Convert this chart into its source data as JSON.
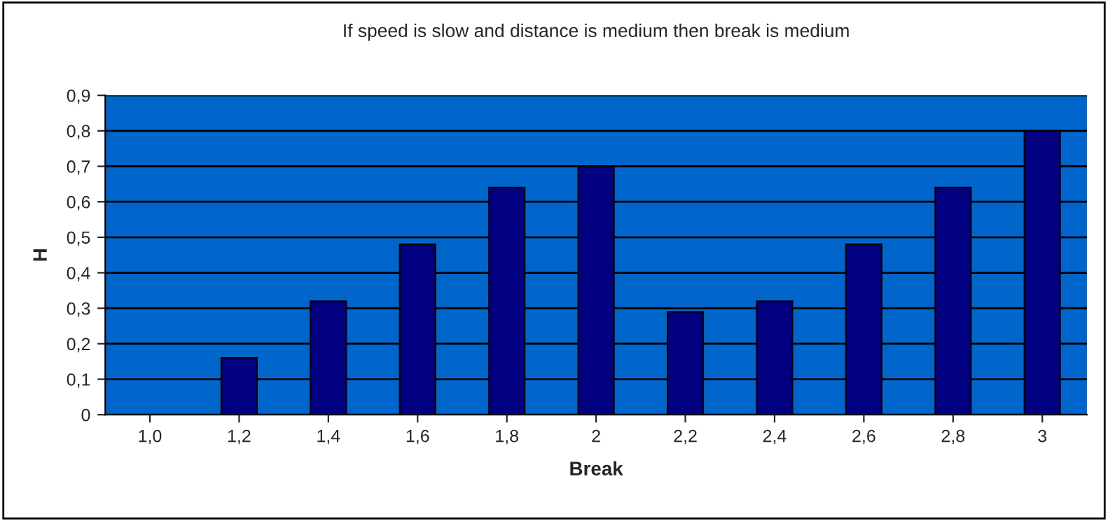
{
  "chart_data": {
    "type": "bar",
    "title": "If speed is slow and distance is medium then break is medium",
    "xlabel": "Break",
    "ylabel": "H",
    "categories": [
      "1,0",
      "1,2",
      "1,4",
      "1,6",
      "1,8",
      "2",
      "2,2",
      "2,4",
      "2,6",
      "2,8",
      "3"
    ],
    "values": [
      0,
      0.16,
      0.32,
      0.48,
      0.64,
      0.7,
      0.29,
      0.32,
      0.48,
      0.64,
      0.8
    ],
    "color": "#000080",
    "ylim": [
      0,
      0.9
    ],
    "yticks": [
      0,
      {
        "value": 0.1,
        "label": "0,1"
      },
      {
        "value": 0.2,
        "label": "0,2"
      },
      {
        "value": 0.3,
        "label": "0,3"
      },
      {
        "value": 0.4,
        "label": "0,4"
      },
      {
        "value": 0.5,
        "label": "0,5"
      },
      {
        "value": 0.6,
        "label": "0,6"
      },
      {
        "value": 0.7,
        "label": "0,7"
      },
      {
        "value": 0.8,
        "label": "0,8"
      },
      {
        "value": 0.9,
        "label": "0,9"
      }
    ],
    "grid": "y",
    "legend": false
  }
}
